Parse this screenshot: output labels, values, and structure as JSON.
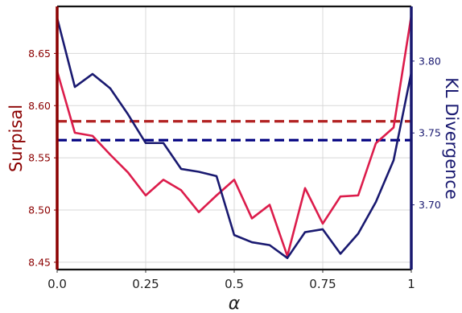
{
  "chart_data": {
    "type": "line",
    "xlabel": "α",
    "ylabel_left": "Surpisal",
    "ylabel_right": "KL Divergence",
    "xlim": [
      0,
      1
    ],
    "ylim_left": [
      8.443,
      8.695
    ],
    "ylim_right": [
      3.655,
      3.838
    ],
    "x_ticks": [
      0,
      0.25,
      0.5,
      0.75,
      1
    ],
    "x_tick_labels": [
      "0.0",
      "0.25",
      "0.5",
      "0.75",
      "1"
    ],
    "y_left_ticks": [
      8.45,
      8.5,
      8.55,
      8.6,
      8.65
    ],
    "y_left_tick_labels": [
      "8.45",
      "8.50",
      "8.55",
      "8.60",
      "8.65"
    ],
    "y_right_ticks": [
      3.7,
      3.75,
      3.8
    ],
    "y_right_tick_labels": [
      "3.70",
      "3.75",
      "3.80"
    ],
    "grid": true,
    "colors": {
      "surprisal_line": "#dc1c4b",
      "kl_line": "#191970",
      "surprisal_baseline": "#b22222",
      "kl_baseline": "#000080",
      "left_axis": "#8b0000",
      "right_axis": "#191970",
      "grid": "#d8d8d8"
    },
    "x": [
      0,
      0.05,
      0.1,
      0.15,
      0.2,
      0.25,
      0.3,
      0.35,
      0.4,
      0.45,
      0.5,
      0.55,
      0.6,
      0.65,
      0.7,
      0.75,
      0.8,
      0.85,
      0.9,
      0.95,
      1.0
    ],
    "series": [
      {
        "axis": "left",
        "style": "solid",
        "values": [
          8.633,
          8.574,
          8.571,
          8.553,
          8.536,
          8.514,
          8.529,
          8.519,
          8.498,
          8.514,
          8.529,
          8.492,
          8.505,
          8.456,
          8.521,
          8.487,
          8.513,
          8.514,
          8.564,
          8.579,
          8.686
        ]
      },
      {
        "axis": "right",
        "style": "solid",
        "values": [
          3.83,
          3.782,
          3.791,
          3.781,
          3.763,
          3.743,
          3.743,
          3.725,
          3.723,
          3.72,
          3.679,
          3.674,
          3.672,
          3.663,
          3.681,
          3.683,
          3.666,
          3.68,
          3.702,
          3.731,
          3.792
        ]
      }
    ],
    "baselines": [
      {
        "axis": "left",
        "value": 8.585,
        "style": "dashed"
      },
      {
        "axis": "right",
        "value": 3.745,
        "style": "dashed"
      }
    ]
  }
}
